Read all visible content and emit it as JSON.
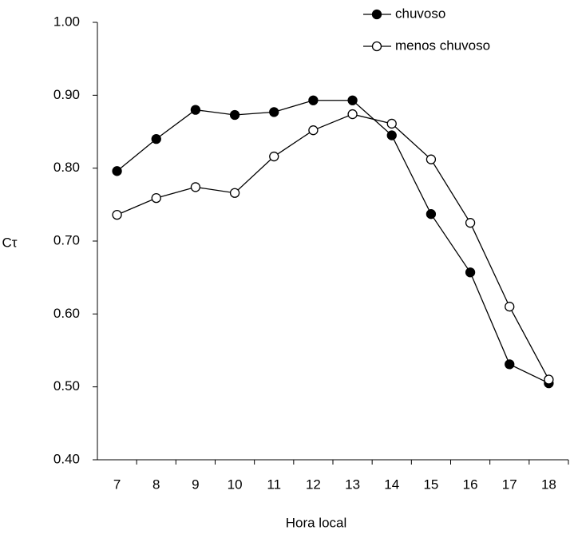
{
  "chart_data": {
    "type": "line",
    "xlabel": "Hora local",
    "ylabel": "Cτ",
    "categories": [
      "7",
      "8",
      "9",
      "10",
      "11",
      "12",
      "13",
      "14",
      "15",
      "16",
      "17",
      "18"
    ],
    "series": [
      {
        "name": "chuvoso",
        "color": "#000000",
        "marker": "filled",
        "values": [
          0.796,
          0.84,
          0.88,
          0.873,
          0.877,
          0.893,
          0.893,
          0.845,
          0.737,
          0.657,
          0.531,
          0.505
        ]
      },
      {
        "name": "menos chuvoso",
        "color": "#000000",
        "marker": "open",
        "values": [
          0.736,
          0.759,
          0.774,
          0.766,
          0.816,
          0.852,
          0.874,
          0.861,
          0.812,
          0.725,
          0.61,
          0.51
        ]
      }
    ],
    "ylim": [
      0.4,
      1.0
    ],
    "yticks": [
      {
        "value": 0.4,
        "label": "0.40"
      },
      {
        "value": 0.5,
        "label": "0.50"
      },
      {
        "value": 0.6,
        "label": "0.60"
      },
      {
        "value": 0.7,
        "label": "0.70"
      },
      {
        "value": 0.8,
        "label": "0.80"
      },
      {
        "value": 0.9,
        "label": "0.90"
      },
      {
        "value": 1.0,
        "label": "1.00"
      }
    ],
    "grid": false,
    "legend": "top-right"
  }
}
